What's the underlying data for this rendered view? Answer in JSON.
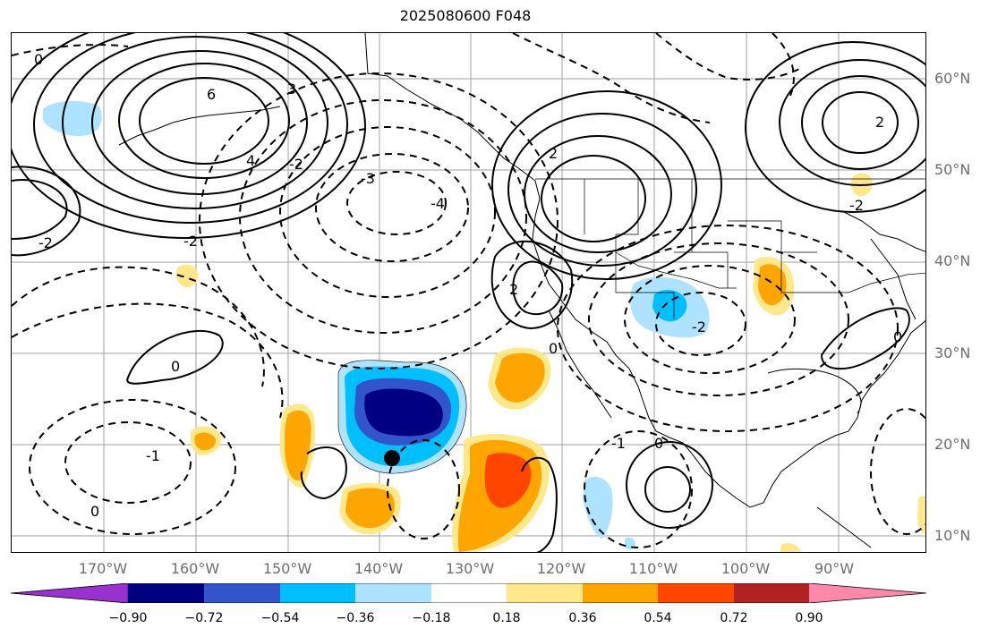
{
  "title": "2025080600 F048",
  "map": {
    "latitude_labels": [
      "60°N",
      "50°N",
      "40°N",
      "30°N",
      "20°N",
      "10°N"
    ],
    "longitude_labels": [
      "170°W",
      "160°W",
      "150°W",
      "140°W",
      "130°W",
      "120°W",
      "110°W",
      "100°W",
      "90°W"
    ],
    "contour_labels": [
      "0",
      "6",
      "3",
      "4",
      "-2",
      "-3",
      "2",
      "-2",
      "0",
      "-4",
      "2",
      "-2",
      "0",
      "-1",
      "0",
      "-2",
      "2",
      "-1",
      "0",
      "-2",
      "0"
    ],
    "marker": "storm-center"
  },
  "colorbar": {
    "ticks": [
      "−0.90",
      "−0.72",
      "−0.54",
      "−0.36",
      "−0.18",
      "0.18",
      "0.36",
      "0.54",
      "0.72",
      "0.90"
    ],
    "colors": [
      "#9b30d0",
      "#000080",
      "#3355cc",
      "#00bfff",
      "#aee3ff",
      "#ffffff",
      "#ffe88a",
      "#ffa500",
      "#ff4500",
      "#b22222",
      "#ff88aa"
    ]
  }
}
